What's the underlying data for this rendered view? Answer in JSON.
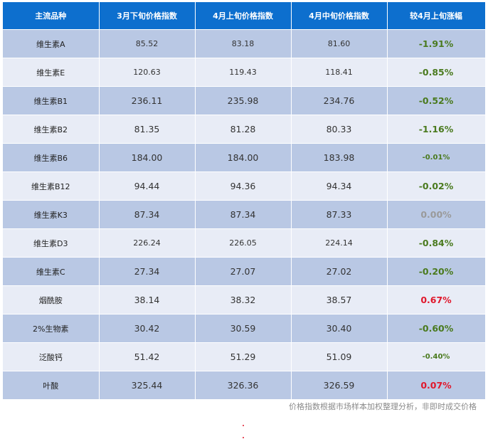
{
  "headers": [
    "主流品种",
    "3月下旬价格指数",
    "4月上旬价格指数",
    "4月中旬价格指数",
    "较4月上旬涨幅"
  ],
  "rows": [
    {
      "name": "维生素A",
      "m3_late": "85.52",
      "a4_early": "83.18",
      "a4_mid": "81.60",
      "change": "-1.91%",
      "color": "#4a7a1e",
      "size": "lg",
      "nsize": "sm"
    },
    {
      "name": "维生素E",
      "m3_late": "120.63",
      "a4_early": "119.43",
      "a4_mid": "118.41",
      "change": "-0.85%",
      "color": "#4a7a1e",
      "size": "lg",
      "nsize": "sm"
    },
    {
      "name": "维生素B1",
      "m3_late": "236.11",
      "a4_early": "235.98",
      "a4_mid": "234.76",
      "change": "-0.52%",
      "color": "#4a7a1e",
      "size": "lg",
      "nsize": "lg"
    },
    {
      "name": "维生素B2",
      "m3_late": "81.35",
      "a4_early": "81.28",
      "a4_mid": "80.33",
      "change": "-1.16%",
      "color": "#4a7a1e",
      "size": "lg",
      "nsize": "lg"
    },
    {
      "name": "维生素B6",
      "m3_late": "184.00",
      "a4_early": "184.00",
      "a4_mid": "183.98",
      "change": "-0.01%",
      "color": "#4a7a1e",
      "size": "sm",
      "nsize": "lg"
    },
    {
      "name": "维生素B12",
      "m3_late": "94.44",
      "a4_early": "94.36",
      "a4_mid": "94.34",
      "change": "-0.02%",
      "color": "#4a7a1e",
      "size": "lg",
      "nsize": "lg"
    },
    {
      "name": "维生素K3",
      "m3_late": "87.34",
      "a4_early": "87.34",
      "a4_mid": "87.33",
      "change": "0.00%",
      "color": "#9a9a9a",
      "size": "lg",
      "nsize": "lg"
    },
    {
      "name": "维生素D3",
      "m3_late": "226.24",
      "a4_early": "226.05",
      "a4_mid": "224.14",
      "change": "-0.84%",
      "color": "#4a7a1e",
      "size": "lg",
      "nsize": "sm"
    },
    {
      "name": "维生素C",
      "m3_late": "27.34",
      "a4_early": "27.07",
      "a4_mid": "27.02",
      "change": "-0.20%",
      "color": "#4a7a1e",
      "size": "lg",
      "nsize": "lg"
    },
    {
      "name": "烟酰胺",
      "m3_late": "38.14",
      "a4_early": "38.32",
      "a4_mid": "38.57",
      "change": "0.67%",
      "color": "#e0182c",
      "size": "lg",
      "nsize": "lg"
    },
    {
      "name": "2%生物素",
      "m3_late": "30.42",
      "a4_early": "30.59",
      "a4_mid": "30.40",
      "change": "-0.60%",
      "color": "#4a7a1e",
      "size": "lg",
      "nsize": "lg"
    },
    {
      "name": "泛酸钙",
      "m3_late": "51.42",
      "a4_early": "51.29",
      "a4_mid": "51.09",
      "change": "-0.40%",
      "color": "#4a7a1e",
      "size": "sm",
      "nsize": "lg"
    },
    {
      "name": "叶酸",
      "m3_late": "325.44",
      "a4_early": "326.36",
      "a4_mid": "326.59",
      "change": "0.07%",
      "color": "#e0182c",
      "size": "lg",
      "nsize": "lg"
    }
  ],
  "note": "价格指数根据市场样本加权整理分析，非即时成交价格"
}
